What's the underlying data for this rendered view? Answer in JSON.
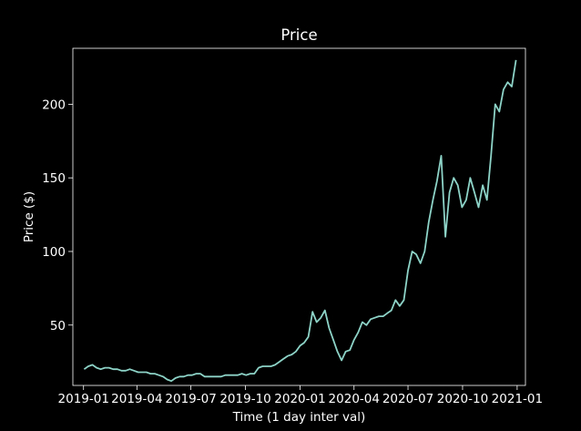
{
  "chart_data": {
    "type": "line",
    "title": "Price",
    "xlabel": "Time (1 day inter val)",
    "ylabel": "Price ($)",
    "x_tick_labels": [
      "2019-01",
      "2019-04",
      "2019-07",
      "2019-10",
      "2020-01",
      "2020-04",
      "2020-07",
      "2020-10",
      "2021-01"
    ],
    "y_ticks": [
      50,
      100,
      150,
      200
    ],
    "xlim": [
      "2018-12-14",
      "2021-01-15"
    ],
    "ylim": [
      9,
      238
    ],
    "grid": false,
    "background": "#000000",
    "line_color": "#8dd3c7",
    "series": [
      {
        "x": [
          "2019-01-02",
          "2019-01-09",
          "2019-01-16",
          "2019-01-23",
          "2019-01-30",
          "2019-02-06",
          "2019-02-13",
          "2019-02-20",
          "2019-02-27",
          "2019-03-06",
          "2019-03-13",
          "2019-03-20",
          "2019-03-27",
          "2019-04-03",
          "2019-04-10",
          "2019-04-17",
          "2019-04-24",
          "2019-05-01",
          "2019-05-08",
          "2019-05-15",
          "2019-05-22",
          "2019-05-29",
          "2019-06-05",
          "2019-06-12",
          "2019-06-19",
          "2019-06-26",
          "2019-07-03",
          "2019-07-10",
          "2019-07-17",
          "2019-07-24",
          "2019-07-31",
          "2019-08-07",
          "2019-08-14",
          "2019-08-21",
          "2019-08-28",
          "2019-09-04",
          "2019-09-11",
          "2019-09-18",
          "2019-09-25",
          "2019-10-02",
          "2019-10-09",
          "2019-10-16",
          "2019-10-23",
          "2019-10-30",
          "2019-11-06",
          "2019-11-13",
          "2019-11-20",
          "2019-11-27",
          "2019-12-04",
          "2019-12-11",
          "2019-12-18",
          "2019-12-25",
          "2020-01-01",
          "2020-01-08",
          "2020-01-15",
          "2020-01-22",
          "2020-01-29",
          "2020-02-05",
          "2020-02-12",
          "2020-02-19",
          "2020-02-26",
          "2020-03-04",
          "2020-03-11",
          "2020-03-18",
          "2020-03-25",
          "2020-04-01",
          "2020-04-08",
          "2020-04-15",
          "2020-04-22",
          "2020-04-29",
          "2020-05-06",
          "2020-05-13",
          "2020-05-20",
          "2020-05-27",
          "2020-06-03",
          "2020-06-10",
          "2020-06-17",
          "2020-06-24",
          "2020-07-01",
          "2020-07-08",
          "2020-07-15",
          "2020-07-22",
          "2020-07-29",
          "2020-08-05",
          "2020-08-12",
          "2020-08-19",
          "2020-08-26",
          "2020-09-02",
          "2020-09-09",
          "2020-09-16",
          "2020-09-23",
          "2020-09-30",
          "2020-10-07",
          "2020-10-14",
          "2020-10-21",
          "2020-10-28",
          "2020-11-04",
          "2020-11-11",
          "2020-11-18",
          "2020-11-25",
          "2020-12-02",
          "2020-12-09",
          "2020-12-16",
          "2020-12-23",
          "2020-12-30"
        ],
        "values": [
          20,
          22,
          23,
          21,
          20,
          21,
          21,
          20,
          20,
          19,
          19,
          20,
          19,
          18,
          18,
          18,
          17,
          17,
          16,
          15,
          13,
          12,
          14,
          15,
          15,
          16,
          16,
          17,
          17,
          15,
          15,
          15,
          15,
          15,
          16,
          16,
          16,
          16,
          17,
          16,
          17,
          17,
          21,
          22,
          22,
          22,
          23,
          25,
          27,
          29,
          30,
          32,
          36,
          38,
          42,
          59,
          52,
          55,
          60,
          48,
          40,
          32,
          26,
          32,
          33,
          40,
          45,
          52,
          50,
          54,
          55,
          56,
          56,
          58,
          60,
          67,
          63,
          67,
          87,
          100,
          98,
          92,
          100,
          120,
          135,
          148,
          165,
          110,
          140,
          150,
          145,
          130,
          135,
          150,
          140,
          130,
          145,
          135,
          165,
          200,
          195,
          210,
          215,
          212,
          230
        ]
      }
    ]
  }
}
